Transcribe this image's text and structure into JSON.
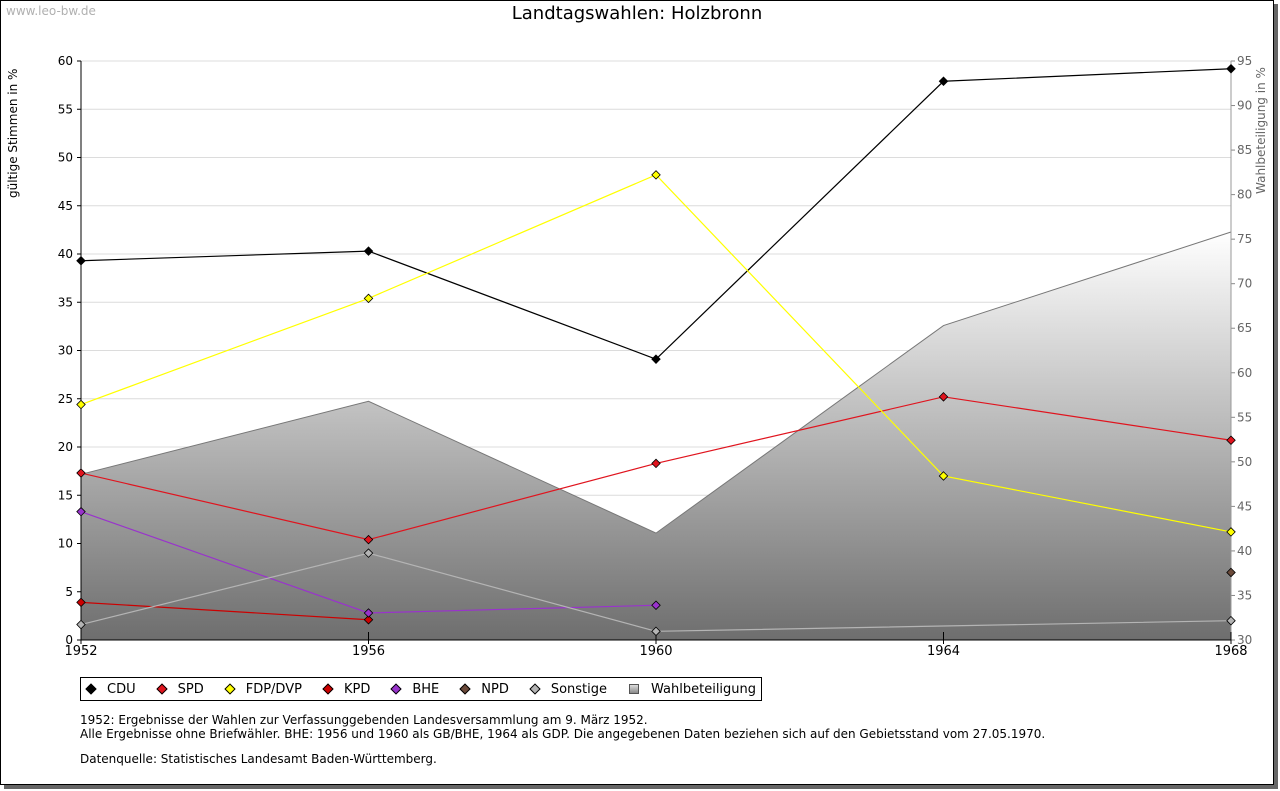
{
  "watermark": "www.leo-bw.de",
  "chart_data": {
    "type": "line",
    "title": "Landtagswahlen: Holzbronn",
    "ylabel": "gültige Stimmen in %",
    "y2label": "Wahlbeteiligung in %",
    "xlabel": "",
    "x": [
      1952,
      1956,
      1960,
      1964,
      1968
    ],
    "x_ticks": [
      "1952",
      "1956",
      "1960",
      "1964",
      "1968"
    ],
    "ylim": [
      0,
      60
    ],
    "y_ticks": [
      0,
      5,
      10,
      15,
      20,
      25,
      30,
      35,
      40,
      45,
      50,
      55,
      60
    ],
    "y2lim": [
      30,
      95
    ],
    "y2_ticks": [
      30,
      35,
      40,
      45,
      50,
      55,
      60,
      65,
      70,
      75,
      80,
      85,
      90,
      95
    ],
    "grid": true,
    "series": [
      {
        "name": "CDU",
        "color": "#000000",
        "values": [
          39.3,
          40.3,
          29.1,
          57.9,
          59.2
        ]
      },
      {
        "name": "SPD",
        "color": "#e0141e",
        "values": [
          17.3,
          10.4,
          18.3,
          25.2,
          20.7
        ]
      },
      {
        "name": "FDP/DVP",
        "color": "#ffff00",
        "values": [
          24.4,
          35.4,
          48.2,
          17.0,
          11.2
        ]
      },
      {
        "name": "KPD",
        "color": "#cc0000",
        "values": [
          3.9,
          2.1,
          null,
          null,
          null
        ]
      },
      {
        "name": "BHE",
        "color": "#9933cc",
        "values": [
          13.3,
          2.8,
          3.6,
          null,
          null
        ]
      },
      {
        "name": "NPD",
        "color": "#6b4a3a",
        "values": [
          null,
          null,
          null,
          null,
          7.0
        ]
      },
      {
        "name": "Sonstige",
        "color": "#b4b4b4",
        "values": [
          1.6,
          9.0,
          0.9,
          null,
          2.0
        ]
      }
    ],
    "area_series": {
      "name": "Wahlbeteiligung",
      "axis": "right",
      "values": [
        48.6,
        56.8,
        42.0,
        65.3,
        75.8
      ]
    },
    "legend": [
      "CDU",
      "SPD",
      "FDP/DVP",
      "KPD",
      "BHE",
      "NPD",
      "Sonstige",
      "Wahlbeteiligung"
    ]
  },
  "notes": [
    "1952: Ergebnisse der Wahlen zur Verfassunggebenden Landesversammlung am 9. März 1952.",
    "Alle Ergebnisse ohne Briefwähler. BHE: 1956 und 1960 als GB/BHE, 1964 als GDP. Die angegebenen Daten beziehen sich auf den Gebietsstand vom 27.05.1970."
  ],
  "source": "Datenquelle: Statistisches Landesamt Baden-Württemberg."
}
